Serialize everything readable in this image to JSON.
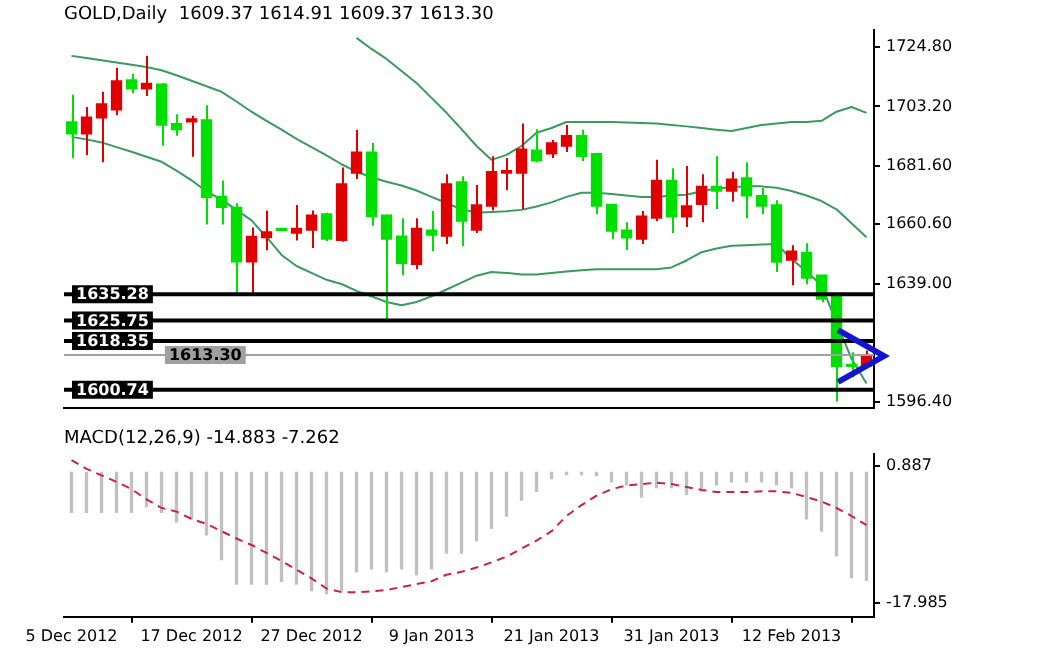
{
  "chart_data": [
    {
      "type": "candlestick",
      "title": "GOLD,Daily  1609.37 1614.91 1609.37 1613.30",
      "ohlc": [
        [
          1697.6,
          1707.4,
          1684.6,
          1693.3
        ],
        [
          1693.3,
          1703,
          1685.6,
          1699.3
        ],
        [
          1699.1,
          1708.5,
          1683,
          1704.1
        ],
        [
          1702,
          1717.2,
          1700,
          1712.4
        ],
        [
          1712.8,
          1715,
          1708,
          1709.6
        ],
        [
          1709.6,
          1721.5,
          1707,
          1711.5
        ],
        [
          1711.3,
          1711.7,
          1689,
          1696.5
        ],
        [
          1697,
          1700.4,
          1692.6,
          1694.8
        ],
        [
          1697.6,
          1699.8,
          1685,
          1698.7
        ],
        [
          1698.3,
          1703.6,
          1660.5,
          1670.3
        ],
        [
          1670.7,
          1676.4,
          1660.5,
          1666.7
        ],
        [
          1666.7,
          1668.2,
          1635.6,
          1647
        ],
        [
          1647,
          1659.4,
          1635.2,
          1656.2
        ],
        [
          1655.8,
          1665.6,
          1651.2,
          1657.8
        ],
        [
          1658.6,
          1658.8,
          1658.2,
          1658.4
        ],
        [
          1657.4,
          1667.6,
          1654.7,
          1659.1
        ],
        [
          1658.5,
          1665.6,
          1652,
          1663.9
        ],
        [
          1664.3,
          1664.8,
          1654.5,
          1655.2
        ],
        [
          1654.8,
          1681.1,
          1654.3,
          1675.2
        ],
        [
          1679.1,
          1694.8,
          1677,
          1686.7
        ],
        [
          1686.7,
          1690,
          1660.1,
          1663.4
        ],
        [
          1663.9,
          1664.1,
          1625.9,
          1655.2
        ],
        [
          1656.3,
          1662.8,
          1642.2,
          1646.5
        ],
        [
          1646.1,
          1662.8,
          1644.3,
          1659.1
        ],
        [
          1658.5,
          1665.4,
          1650.9,
          1656.7
        ],
        [
          1656.3,
          1678.7,
          1653.5,
          1675.2
        ],
        [
          1675.9,
          1678,
          1652.6,
          1661.7
        ],
        [
          1658.5,
          1674.8,
          1657.4,
          1667.6
        ],
        [
          1667.2,
          1685.2,
          1665.6,
          1679.6
        ],
        [
          1679.1,
          1684.6,
          1673,
          1680
        ],
        [
          1679.1,
          1697,
          1666.1,
          1687.8
        ],
        [
          1687.4,
          1695,
          1683,
          1683.5
        ],
        [
          1686.1,
          1691.1,
          1684.6,
          1690
        ],
        [
          1688.9,
          1696.5,
          1686.7,
          1692.6
        ],
        [
          1692.6,
          1694.8,
          1683.5,
          1685.2
        ],
        [
          1686.1,
          1686.1,
          1664.3,
          1667.2
        ],
        [
          1667.8,
          1667.8,
          1655.2,
          1658.1
        ],
        [
          1658.5,
          1661.3,
          1651.3,
          1655.7
        ],
        [
          1655.2,
          1665.4,
          1653.5,
          1663.5
        ],
        [
          1662.8,
          1683.9,
          1661.7,
          1676.5
        ],
        [
          1676.5,
          1680.9,
          1657.4,
          1663.3
        ],
        [
          1663.3,
          1681.7,
          1659.6,
          1667.2
        ],
        [
          1667.8,
          1678.7,
          1661.3,
          1674.3
        ],
        [
          1674.3,
          1685.2,
          1666.1,
          1672.6
        ],
        [
          1672.6,
          1679.6,
          1668.7,
          1676.9
        ],
        [
          1677.4,
          1683,
          1662.8,
          1670.9
        ],
        [
          1670.9,
          1673.7,
          1664.3,
          1667.2
        ],
        [
          1667.6,
          1669.3,
          1643.3,
          1646.9
        ],
        [
          1647.6,
          1653,
          1638.5,
          1650.9
        ],
        [
          1650.4,
          1653.7,
          1638.9,
          1641.1
        ],
        [
          1642.2,
          1642.2,
          1632.4,
          1633.5
        ],
        [
          1634.6,
          1634.6,
          1596.5,
          1609.1
        ],
        [
          1609.6,
          1614.3,
          1605.2,
          1609.2
        ],
        [
          1609.37,
          1614.91,
          1609.37,
          1613.3
        ]
      ],
      "colors": [
        "#00e000",
        "#e00000",
        "#e00000",
        "#e00000",
        "#00e000",
        "#e00000",
        "#00e000",
        "#00e000",
        "#e00000",
        "#00e000",
        "#00e000",
        "#00e000",
        "#e00000",
        "#e00000",
        "#00e000",
        "#e00000",
        "#e00000",
        "#00e000",
        "#e00000",
        "#e00000",
        "#00e000",
        "#00e000",
        "#00e000",
        "#e00000",
        "#00e000",
        "#e00000",
        "#00e000",
        "#e00000",
        "#e00000",
        "#e00000",
        "#e00000",
        "#00e000",
        "#e00000",
        "#e00000",
        "#00e000",
        "#00e000",
        "#00e000",
        "#00e000",
        "#e00000",
        "#e00000",
        "#00e000",
        "#e00000",
        "#e00000",
        "#00e000",
        "#e00000",
        "#00e000",
        "#00e000",
        "#00e000",
        "#e00000",
        "#00e000",
        "#00e000",
        "#00e000",
        "#00e000",
        "#e00000"
      ],
      "series": [
        {
          "type": "line",
          "color": "#3a9a60",
          "values": [
            null,
            null,
            null,
            null,
            null,
            null,
            null,
            null,
            null,
            null,
            null,
            null,
            null,
            null,
            null,
            null,
            null,
            null,
            null,
            1728,
            1724,
            1720.4,
            1716,
            1711.7,
            1706.3,
            1700.9,
            1695,
            1688.9,
            1683.9,
            1685.7,
            1688.9,
            1693.7,
            1695.4,
            1697.6,
            1697.6,
            1697.6,
            1697.6,
            1697.4,
            1697.2,
            1697,
            1696.5,
            1696,
            1695.4,
            1694.8,
            1694.3,
            1695.4,
            1696.5,
            1697,
            1697.6,
            1697.6,
            1698,
            1701.3,
            1703,
            1700.9
          ]
        },
        {
          "type": "line",
          "color": "#3a9a60",
          "values": [
            1721.5,
            1720.7,
            1719.9,
            1719.1,
            1718.3,
            1717.5,
            1716.3,
            1714.5,
            1712.5,
            1710.5,
            1708.5,
            1705,
            1701.3,
            1698,
            1694.8,
            1691.5,
            1688.5,
            1685.5,
            1682.3,
            1679.6,
            1677.6,
            1676,
            1674.6,
            1672.8,
            1670.5,
            1668.3,
            1666,
            1664.8,
            1665,
            1665.3,
            1665.8,
            1667,
            1668.5,
            1670.5,
            1672,
            1672,
            1671.5,
            1671,
            1670.5,
            1670.5,
            1671,
            1671.3,
            1672.5,
            1673.5,
            1674,
            1674.3,
            1674.3,
            1673.8,
            1672.6,
            1671,
            1669,
            1666,
            1661,
            1655.9
          ]
        },
        {
          "type": "line",
          "color": "#3a9a60",
          "values": [
            1692.2,
            1691.3,
            1690.2,
            1688.5,
            1686.8,
            1685,
            1683.2,
            1680,
            1676.5,
            1672.5,
            1669.5,
            1665.8,
            1662,
            1656,
            1649.5,
            1645.5,
            1643,
            1640.5,
            1639,
            1636.5,
            1634.5,
            1632.5,
            1631.3,
            1632.5,
            1634.5,
            1637,
            1639.5,
            1642,
            1643.3,
            1643,
            1642.4,
            1642.4,
            1643,
            1643.5,
            1644,
            1644.3,
            1644.3,
            1644.3,
            1644.3,
            1644.3,
            1645,
            1647.5,
            1650.5,
            1651.8,
            1652.8,
            1653,
            1653.3,
            1653.5,
            1648,
            1643.5,
            1638.5,
            1625,
            1612,
            1603
          ]
        }
      ],
      "ref_lines": [
        {
          "axis": "y",
          "value": 1635.28,
          "label": "1635.28",
          "color": "#000000"
        },
        {
          "axis": "y",
          "value": 1625.75,
          "label": "1625.75",
          "color": "#000000"
        },
        {
          "axis": "y",
          "value": 1618.35,
          "label": "1618.35",
          "color": "#000000"
        },
        {
          "axis": "y",
          "value": 1613.3,
          "label": "1613.30",
          "color": "#a0a0a0"
        },
        {
          "axis": "y",
          "value": 1600.74,
          "label": "1600.74",
          "color": "#000000"
        }
      ],
      "ylim": [
        1594,
        1731
      ],
      "yticks": [
        {
          "value": 1724.8,
          "label": "1724.80"
        },
        {
          "value": 1703.2,
          "label": "1703.20"
        },
        {
          "value": 1681.6,
          "label": "1681.60"
        },
        {
          "value": 1660.6,
          "label": "1660.60"
        },
        {
          "value": 1639,
          "label": "1639.00"
        },
        {
          "value": 1596.4,
          "label": "1596.40"
        }
      ],
      "tick_labels": "y"
    },
    {
      "type": "bar",
      "title": "MACD(12,26,9) -14.883 -7.262",
      "categories": [
        "5 Dec 2012",
        null,
        null,
        null,
        null,
        null,
        null,
        null,
        "17 Dec 2012",
        null,
        null,
        null,
        null,
        null,
        null,
        null,
        "27 Dec 2012",
        null,
        null,
        null,
        null,
        null,
        null,
        null,
        "9 Jan 2013",
        null,
        null,
        null,
        null,
        null,
        null,
        null,
        "21 Jan 2013",
        null,
        null,
        null,
        null,
        null,
        null,
        null,
        "31 Jan 2013",
        null,
        null,
        null,
        null,
        null,
        null,
        null,
        "12 Feb 2013",
        null,
        null,
        null,
        null,
        null
      ],
      "series": [
        {
          "type": "bar",
          "color": "#c0c0c0",
          "values": [
            -5.5,
            -5.5,
            -5.5,
            -5.5,
            -5.5,
            -4.7,
            -5.5,
            -6.8,
            -6.4,
            -8.6,
            -12,
            -15.4,
            -15.4,
            -15.4,
            -15,
            -15.4,
            -16.3,
            -16.7,
            -16.3,
            -13.7,
            -13.3,
            -13.7,
            -13.3,
            -14.1,
            -13.3,
            -11.1,
            -11.1,
            -9.4,
            -7.7,
            -6,
            -3.8,
            -2.6,
            -0.8,
            -0.3,
            -0.3,
            -0.4,
            -1.3,
            -1.7,
            -3.4,
            -2.1,
            -2.1,
            -3,
            -2.6,
            -1.7,
            -1.3,
            -1.3,
            -1.3,
            -1.7,
            -2.1,
            -6.4,
            -8.1,
            -11.5,
            -14.5,
            -14.883
          ]
        },
        {
          "type": "line",
          "color": "#d02040",
          "line_style": "dashed",
          "values": [
            1.7,
            0.5,
            -0.4,
            -1.3,
            -2.3,
            -3.7,
            -4.9,
            -5.4,
            -6.4,
            -7.1,
            -8.1,
            -9.1,
            -10,
            -11.1,
            -12.2,
            -13.4,
            -14.6,
            -16,
            -16.5,
            -16.5,
            -16.4,
            -16.2,
            -15.8,
            -15.4,
            -15,
            -14.1,
            -13.7,
            -13.1,
            -12.4,
            -11.6,
            -10.5,
            -9.4,
            -8.1,
            -6,
            -4.5,
            -3.2,
            -2.3,
            -1.8,
            -1.6,
            -1.4,
            -1.6,
            -2,
            -2.4,
            -2.7,
            -2.7,
            -2.7,
            -2.6,
            -2.6,
            -2.8,
            -3.4,
            -4,
            -4.9,
            -6,
            -7.262
          ]
        }
      ],
      "ylim": [
        -19.9,
        2.6
      ],
      "yticks": [
        0.887,
        -17.985
      ]
    }
  ]
}
